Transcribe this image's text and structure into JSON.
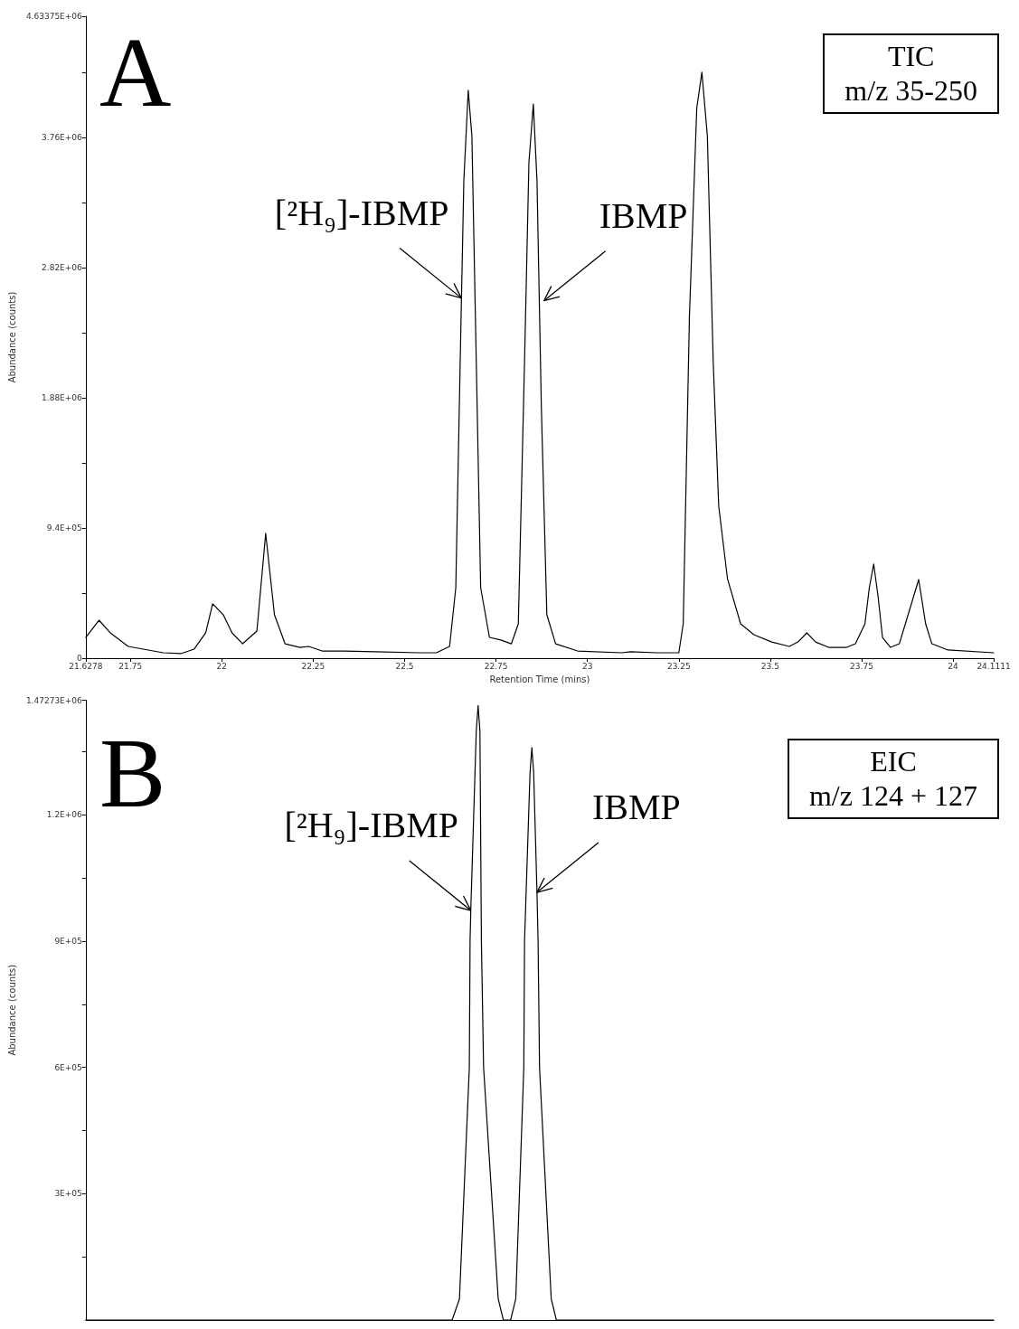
{
  "chart_data": [
    {
      "type": "line",
      "title": "A",
      "xlabel": "Retention Time (mins)",
      "ylabel": "Abundance (counts)",
      "color": "#000000",
      "marker": "none",
      "line_style": "solid",
      "grid": false,
      "annotations": [
        {
          "text": "[²H₉]-IBMP",
          "x": 22.655,
          "y": 2600000
        },
        {
          "text": "IBMP",
          "x": 22.881,
          "y": 2580000
        },
        "TIC",
        "m/z 35-250"
      ],
      "xlim": [
        21.6278,
        24.1111
      ],
      "xticks": [
        21.6278,
        21.75,
        22,
        22.25,
        22.5,
        22.75,
        23,
        23.25,
        23.5,
        23.75,
        24,
        24.1111
      ],
      "ylim": [
        0,
        4633750
      ],
      "yticks": [
        0,
        {
          "value": 470000,
          "label": null
        },
        {
          "value": 940000,
          "label": "9.4E+05"
        },
        {
          "value": 1410000,
          "label": null
        },
        {
          "value": 1880000,
          "label": "1.88E+06"
        },
        {
          "value": 2350000,
          "label": null
        },
        {
          "value": 2820000,
          "label": "2.82E+06"
        },
        {
          "value": 3290000,
          "label": null
        },
        {
          "value": 3760000,
          "label": "3.76E+06"
        },
        {
          "value": 4230000,
          "label": null
        },
        {
          "value": 4633750,
          "label": "4.63375E+06"
        }
      ],
      "x": [
        21.628,
        21.664,
        21.695,
        21.744,
        21.84,
        21.888,
        21.924,
        21.956,
        21.975,
        22.004,
        22.028,
        22.057,
        22.096,
        22.12,
        22.144,
        22.173,
        22.214,
        22.238,
        22.274,
        22.334,
        22.419,
        22.539,
        22.587,
        22.623,
        22.64,
        22.652,
        22.662,
        22.674,
        22.684,
        22.696,
        22.708,
        22.732,
        22.763,
        22.792,
        22.811,
        22.828,
        22.84,
        22.852,
        22.862,
        22.874,
        22.889,
        22.913,
        22.973,
        23.094,
        23.118,
        23.19,
        23.25,
        23.262,
        23.279,
        23.299,
        23.313,
        23.328,
        23.344,
        23.359,
        23.383,
        23.419,
        23.455,
        23.504,
        23.552,
        23.576,
        23.6,
        23.624,
        23.66,
        23.709,
        23.733,
        23.759,
        23.771,
        23.783,
        23.795,
        23.807,
        23.829,
        23.853,
        23.877,
        23.906,
        23.925,
        23.942,
        23.986,
        24.111
      ],
      "values": [
        150000,
        274000,
        183000,
        85000,
        39000,
        33000,
        65000,
        183000,
        392000,
        313000,
        183000,
        104000,
        196000,
        901000,
        313000,
        104000,
        78000,
        85000,
        52000,
        52000,
        46000,
        39000,
        39000,
        85000,
        509000,
        2140000,
        3450000,
        4100000,
        3770000,
        2140000,
        509000,
        150000,
        131000,
        104000,
        248000,
        2140000,
        3580000,
        4000000,
        3450000,
        1810000,
        313000,
        104000,
        52000,
        39000,
        46000,
        39000,
        39000,
        248000,
        2470000,
        3970000,
        4230000,
        3770000,
        2140000,
        1100000,
        574000,
        248000,
        170000,
        117000,
        85000,
        117000,
        183000,
        117000,
        78000,
        78000,
        104000,
        248000,
        509000,
        679000,
        444000,
        150000,
        78000,
        104000,
        313000,
        568000,
        248000,
        104000,
        59000,
        39000
      ]
    },
    {
      "type": "line",
      "title": "B",
      "ylabel": "Abundance (counts)",
      "color": "#000000",
      "marker": "none",
      "line_style": "solid",
      "grid": false,
      "tick_labels": "y",
      "annotations": [
        {
          "text": "[²H₉]-IBMP",
          "x": 22.681,
          "y": 973000
        },
        {
          "text": "IBMP",
          "x": 22.862,
          "y": 1016000
        },
        "EIC",
        "m/z 124 + 127"
      ],
      "xlim": [
        21.6278,
        24.1111
      ],
      "ylim": [
        0,
        1472730
      ],
      "yticks": [
        {
          "value": 150000,
          "label": null
        },
        {
          "value": 300000,
          "label": "3E+05"
        },
        {
          "value": 450000,
          "label": null
        },
        {
          "value": 600000,
          "label": "6E+05"
        },
        {
          "value": 750000,
          "label": null
        },
        {
          "value": 900000,
          "label": "9E+05"
        },
        {
          "value": 1050000,
          "label": null
        },
        {
          "value": 1200000,
          "label": "1.2E+06"
        },
        {
          "value": 1350000,
          "label": null
        },
        {
          "value": 1472730,
          "label": "1.47273E+06"
        }
      ],
      "x": [
        21.6278,
        22.63,
        22.65,
        22.677,
        22.679,
        22.681,
        22.696,
        22.701,
        22.706,
        22.71,
        22.716,
        22.756,
        22.77,
        22.79,
        22.804,
        22.826,
        22.828,
        22.843,
        22.848,
        22.853,
        22.862,
        22.865,
        22.869,
        22.901,
        22.915,
        24.1111
      ],
      "values": [
        0,
        0,
        50000,
        600000,
        900000,
        973000,
        1400000,
        1460000,
        1400000,
        900000,
        600000,
        50000,
        0,
        0,
        50000,
        600000,
        900000,
        1300000,
        1360000,
        1300000,
        1016000,
        900000,
        600000,
        50000,
        0,
        0
      ]
    }
  ]
}
